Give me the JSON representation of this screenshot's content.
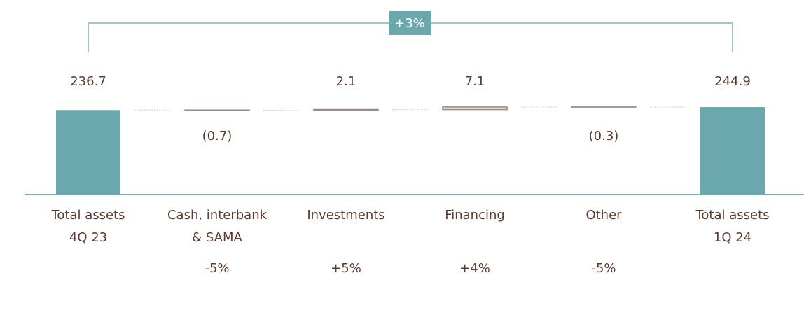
{
  "chart_data": {
    "type": "waterfall",
    "categories": [
      [
        "Total assets",
        "4Q 23"
      ],
      [
        "Cash, interbank",
        "& SAMA"
      ],
      [
        "Investments"
      ],
      [
        "Financing"
      ],
      [
        "Other"
      ],
      [
        "Total assets",
        "1Q 24"
      ]
    ],
    "measure": [
      "total",
      "relative",
      "relative",
      "relative",
      "relative",
      "total"
    ],
    "values": [
      236.7,
      -0.7,
      2.1,
      7.1,
      -0.3,
      244.9
    ],
    "value_labels": [
      "236.7",
      "(0.7)",
      "2.1",
      "7.1",
      "(0.3)",
      "244.9"
    ],
    "change_labels": [
      null,
      "-5%",
      "+5%",
      "+4%",
      "-5%",
      null
    ],
    "annotation": "+3%",
    "total_color": "#6aa8ae",
    "delta_color": "#9b8a82",
    "ylim": [
      0,
      300
    ]
  }
}
